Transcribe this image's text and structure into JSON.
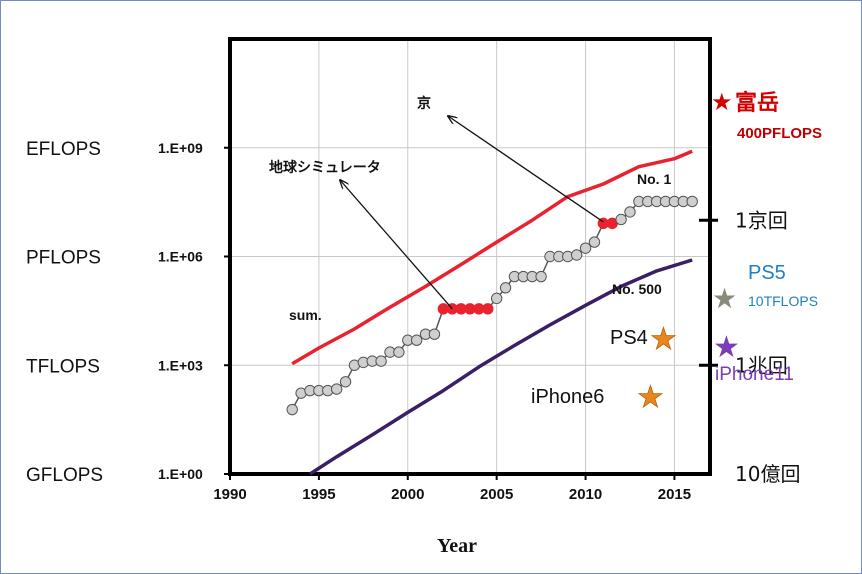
{
  "chart_data": {
    "type": "line",
    "title": "",
    "xlabel": "Year",
    "ylabel": "",
    "x_ticks": [
      "1990",
      "1995",
      "2000",
      "2005",
      "2010",
      "2015"
    ],
    "xlim": [
      1990,
      2017
    ],
    "y_scale": "log10",
    "ylim": [
      1,
      1000000000000
    ],
    "y_ticks": [
      {
        "label": "1.E+00",
        "value": 1
      },
      {
        "label": "1.E+03",
        "value": 1000
      },
      {
        "label": "1.E+06",
        "value": 1000000
      },
      {
        "label": "1.E+09",
        "value": 1000000000
      }
    ],
    "y_side_labels": [
      {
        "label": "GFLOPS",
        "value": 1
      },
      {
        "label": "TFLOPS",
        "value": 1000
      },
      {
        "label": "PFLOPS",
        "value": 1000000
      },
      {
        "label": "EFLOPS",
        "value": 1000000000
      }
    ],
    "right_labels": [
      {
        "label": "1京回",
        "value": 10000000
      },
      {
        "label": "1兆回",
        "value": 1000
      },
      {
        "label": "10億回",
        "value": 1
      }
    ],
    "grid": true,
    "series": [
      {
        "name": "sum.",
        "color": "#e8232f",
        "x": [
          1993.5,
          1995,
          1997,
          1999,
          2001,
          2003,
          2005,
          2007,
          2009,
          2011,
          2013,
          2015,
          2016
        ],
        "y": [
          1100,
          3000,
          10000,
          40000,
          150000,
          600000,
          2500000,
          10000000,
          45000000,
          100000000,
          300000000,
          500000000,
          800000000
        ]
      },
      {
        "name": "No. 1",
        "color": "#555555",
        "marker_fill": "#cfcfcf",
        "highlight_color": "#e8232f",
        "x": [
          1993.5,
          1994,
          1994.5,
          1995,
          1995.5,
          1996,
          1996.5,
          1997,
          1997.5,
          1998,
          1998.5,
          1999,
          1999.5,
          2000,
          2000.5,
          2001,
          2001.5,
          2002,
          2002.5,
          2003,
          2003.5,
          2004,
          2004.5,
          2005,
          2005.5,
          2006,
          2006.5,
          2007,
          2007.5,
          2008,
          2008.5,
          2009,
          2009.5,
          2010,
          2010.5,
          2011,
          2011.5,
          2012,
          2012.5,
          2013,
          2013.5,
          2014,
          2014.5,
          2015,
          2015.5,
          2016
        ],
        "y": [
          60,
          170,
          200,
          200,
          200,
          220,
          350,
          1000,
          1200,
          1300,
          1300,
          2300,
          2300,
          4900,
          4900,
          7200,
          7200,
          36000,
          36000,
          36000,
          36000,
          36000,
          36000,
          70000,
          137000,
          280000,
          280000,
          280000,
          280000,
          1000000,
          1000000,
          1000000,
          1100000,
          1700000,
          2500000,
          8200000,
          8200000,
          10500000,
          17000000,
          33000000,
          33000000,
          33000000,
          33000000,
          33000000,
          33000000,
          33000000
        ]
      },
      {
        "name": "No. 500",
        "color": "#3a1f66",
        "x": [
          1994.5,
          1996,
          1998,
          2000,
          2002,
          2004,
          2006,
          2008,
          2010,
          2012,
          2014,
          2016
        ],
        "y": [
          0.8,
          3,
          12,
          50,
          200,
          900,
          3500,
          13000,
          45000,
          150000,
          400000,
          800000
        ]
      }
    ],
    "annotations": [
      {
        "label": "京",
        "year": 2011,
        "value": 9000000
      },
      {
        "label": "地球シミュレータ",
        "year": 2002.5,
        "value": 36000
      }
    ],
    "devices": [
      {
        "label": "富岳",
        "sublabel": "400PFLOPS",
        "color": "#d40000"
      },
      {
        "label": "PS5",
        "sublabel": "10TFLOPS",
        "color": "#8a8a7a",
        "label_color": "#1f7fc4"
      },
      {
        "label": "PS4",
        "sublabel": "",
        "color": "#e8871e"
      },
      {
        "label": "iPhone11",
        "sublabel": "",
        "color": "#7a3db8"
      },
      {
        "label": "iPhone6",
        "sublabel": "",
        "color": "#e8871e"
      }
    ]
  }
}
